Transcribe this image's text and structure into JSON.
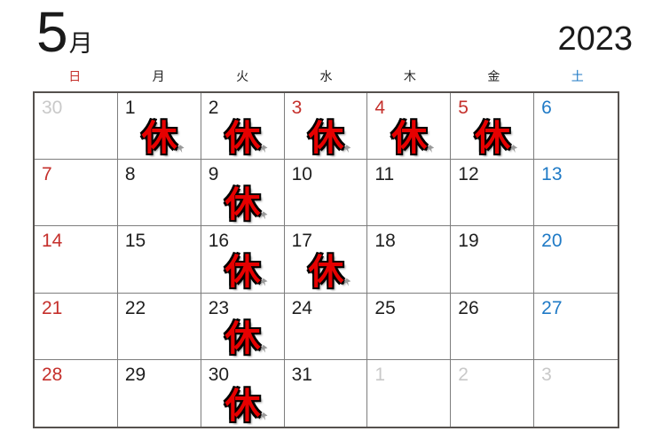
{
  "header": {
    "month_number": "5",
    "month_suffix": "月",
    "year": "2023"
  },
  "colors": {
    "red": "#c5302c",
    "blue": "#1f7ac6",
    "black": "#1f1f1f",
    "gray": "#c9c9c9",
    "stamp_fill": "#e60000",
    "stamp_outline": "#000000",
    "grid_line": "#7d7d7d",
    "grid_border": "#55514e"
  },
  "weekdays": [
    {
      "label": "日",
      "color": "red"
    },
    {
      "label": "月",
      "color": "black"
    },
    {
      "label": "火",
      "color": "black"
    },
    {
      "label": "水",
      "color": "black"
    },
    {
      "label": "木",
      "color": "black"
    },
    {
      "label": "金",
      "color": "black"
    },
    {
      "label": "土",
      "color": "blue"
    }
  ],
  "stamp": {
    "label": "休"
  },
  "weeks": [
    [
      {
        "date": "30",
        "color": "gray",
        "stamp": false
      },
      {
        "date": "1",
        "color": "black",
        "stamp": true
      },
      {
        "date": "2",
        "color": "black",
        "stamp": true
      },
      {
        "date": "3",
        "color": "red",
        "stamp": true
      },
      {
        "date": "4",
        "color": "red",
        "stamp": true
      },
      {
        "date": "5",
        "color": "red",
        "stamp": true
      },
      {
        "date": "6",
        "color": "blue",
        "stamp": false
      }
    ],
    [
      {
        "date": "7",
        "color": "red",
        "stamp": false
      },
      {
        "date": "8",
        "color": "black",
        "stamp": false
      },
      {
        "date": "9",
        "color": "black",
        "stamp": true
      },
      {
        "date": "10",
        "color": "black",
        "stamp": false
      },
      {
        "date": "11",
        "color": "black",
        "stamp": false
      },
      {
        "date": "12",
        "color": "black",
        "stamp": false
      },
      {
        "date": "13",
        "color": "blue",
        "stamp": false
      }
    ],
    [
      {
        "date": "14",
        "color": "red",
        "stamp": false
      },
      {
        "date": "15",
        "color": "black",
        "stamp": false
      },
      {
        "date": "16",
        "color": "black",
        "stamp": true
      },
      {
        "date": "17",
        "color": "black",
        "stamp": true
      },
      {
        "date": "18",
        "color": "black",
        "stamp": false
      },
      {
        "date": "19",
        "color": "black",
        "stamp": false
      },
      {
        "date": "20",
        "color": "blue",
        "stamp": false
      }
    ],
    [
      {
        "date": "21",
        "color": "red",
        "stamp": false
      },
      {
        "date": "22",
        "color": "black",
        "stamp": false
      },
      {
        "date": "23",
        "color": "black",
        "stamp": true
      },
      {
        "date": "24",
        "color": "black",
        "stamp": false
      },
      {
        "date": "25",
        "color": "black",
        "stamp": false
      },
      {
        "date": "26",
        "color": "black",
        "stamp": false
      },
      {
        "date": "27",
        "color": "blue",
        "stamp": false
      }
    ],
    [
      {
        "date": "28",
        "color": "red",
        "stamp": false
      },
      {
        "date": "29",
        "color": "black",
        "stamp": false
      },
      {
        "date": "30",
        "color": "black",
        "stamp": true
      },
      {
        "date": "31",
        "color": "black",
        "stamp": false
      },
      {
        "date": "1",
        "color": "gray",
        "stamp": false
      },
      {
        "date": "2",
        "color": "gray",
        "stamp": false
      },
      {
        "date": "3",
        "color": "gray",
        "stamp": false
      }
    ]
  ]
}
